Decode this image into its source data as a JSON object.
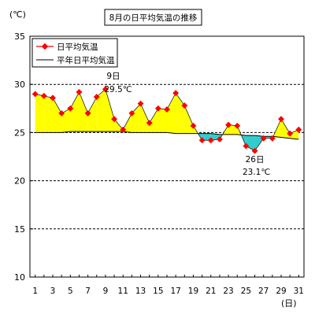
{
  "chart_data": {
    "type": "line",
    "title": "8月の日平均気温の推移",
    "ylabel": "(℃)",
    "xlabel": "(日)",
    "ylim": [
      10,
      35
    ],
    "yticks": [
      10,
      15,
      20,
      25,
      30,
      35
    ],
    "dashed_gridlines": [
      15,
      20,
      25,
      30
    ],
    "x": [
      1,
      2,
      3,
      4,
      5,
      6,
      7,
      8,
      9,
      10,
      11,
      12,
      13,
      14,
      15,
      16,
      17,
      18,
      19,
      20,
      21,
      22,
      23,
      24,
      25,
      26,
      27,
      28,
      29,
      30,
      31
    ],
    "xtick_labels": [
      "1",
      "3",
      "5",
      "7",
      "9",
      "11",
      "13",
      "15",
      "17",
      "19",
      "21",
      "23",
      "25",
      "27",
      "29",
      "31"
    ],
    "series": [
      {
        "name": "日平均気温",
        "color": "#ff0000",
        "marker": "diamond",
        "values": [
          29.0,
          28.8,
          28.6,
          27.0,
          27.5,
          29.2,
          27.0,
          28.7,
          29.5,
          26.4,
          25.3,
          27.0,
          28.0,
          26.0,
          27.5,
          27.4,
          29.1,
          27.8,
          25.7,
          24.2,
          24.2,
          24.3,
          25.8,
          25.7,
          23.6,
          23.1,
          24.4,
          24.4,
          26.4,
          24.9,
          25.3
        ]
      },
      {
        "name": "平年日平均気温",
        "color": "#000000",
        "marker": "none",
        "values": [
          25.0,
          25.0,
          25.0,
          25.0,
          25.1,
          25.1,
          25.1,
          25.1,
          25.1,
          25.1,
          25.1,
          25.0,
          25.0,
          25.0,
          25.0,
          25.0,
          24.9,
          24.9,
          24.9,
          24.9,
          24.9,
          24.8,
          24.8,
          24.8,
          24.7,
          24.7,
          24.6,
          24.6,
          24.5,
          24.4,
          24.3
        ]
      }
    ],
    "fill_above_color": "#ffff00",
    "fill_below_color": "#33cccc",
    "annotations": [
      {
        "day": "9日",
        "value": "29.5℃",
        "x": 9,
        "y": 29.5
      },
      {
        "day": "26日",
        "value": "23.1℃",
        "x": 26,
        "y": 23.1
      }
    ],
    "legend_position": "top-left",
    "grid": true
  }
}
